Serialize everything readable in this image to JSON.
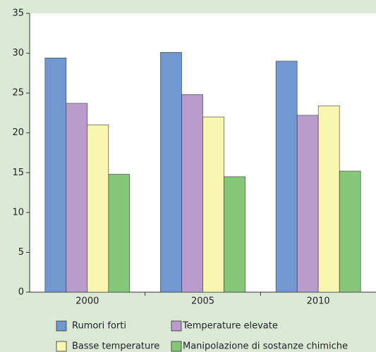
{
  "chart_data": {
    "type": "bar",
    "categories": [
      "2000",
      "2005",
      "2010"
    ],
    "series": [
      {
        "name": "Rumori forti",
        "color": "#7199d0",
        "values": [
          29.4,
          30.1,
          29.0
        ]
      },
      {
        "name": "Temperature elevate",
        "color": "#b99ccb",
        "values": [
          23.7,
          24.8,
          22.2
        ]
      },
      {
        "name": "Basse temperature",
        "color": "#f8f6b0",
        "values": [
          21.0,
          22.0,
          23.4
        ]
      },
      {
        "name": "Manipolazione di sostanze chimiche",
        "color": "#86c77a",
        "values": [
          14.8,
          14.5,
          15.2
        ]
      }
    ],
    "ylim": [
      0,
      35
    ],
    "yticks": [
      0,
      5,
      10,
      15,
      20,
      25,
      30,
      35
    ],
    "grid": false,
    "legend": "bottom"
  }
}
